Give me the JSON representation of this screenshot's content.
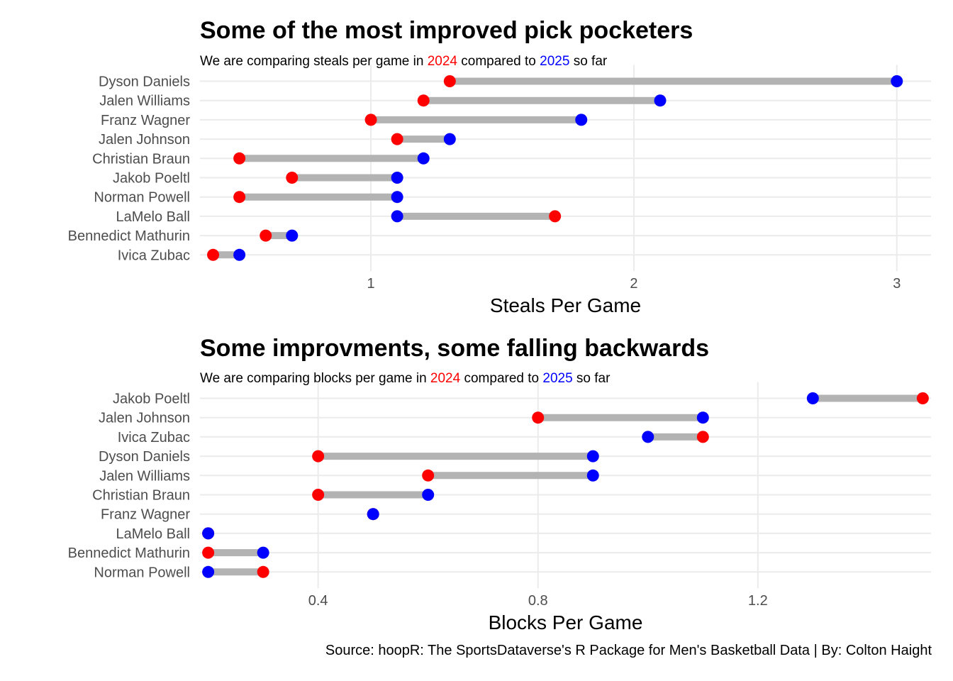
{
  "chart_data": [
    {
      "type": "dumbbell",
      "title": "Some of the most improved pick pocketers",
      "subtitle": {
        "prefix": "We are comparing steals per game in ",
        "label_a": "2024",
        "middle": " compared to ",
        "label_b": "2025",
        "suffix": " so far"
      },
      "xlabel": "Steals Per Game",
      "ylabel": "",
      "xlim": [
        0.35,
        3.13
      ],
      "xticks": [
        1,
        2,
        3
      ],
      "xtick_labels": [
        "1",
        "2",
        "3"
      ],
      "grid": true,
      "colors": {
        "y2024": "#FF0000",
        "y2025": "#0000FF",
        "segment": "#B3B3B3",
        "grid": "#EBEBEB"
      },
      "categories": [
        "Dyson Daniels",
        "Jalen Williams",
        "Franz Wagner",
        "Jalen Johnson",
        "Christian Braun",
        "Jakob Poeltl",
        "Norman Powell",
        "LaMelo Ball",
        "Bennedict Mathurin",
        "Ivica Zubac"
      ],
      "series": [
        {
          "name": "2024",
          "values": [
            1.3,
            1.2,
            1.0,
            1.1,
            0.5,
            0.7,
            0.5,
            1.7,
            0.6,
            0.4
          ]
        },
        {
          "name": "2025",
          "values": [
            3.0,
            2.1,
            1.8,
            1.3,
            1.2,
            1.1,
            1.1,
            1.1,
            0.7,
            0.5
          ]
        }
      ]
    },
    {
      "type": "dumbbell",
      "title": "Some improvments, some falling backwards",
      "subtitle": {
        "prefix": "We are comparing blocks per game in ",
        "label_a": "2024",
        "middle": " compared to ",
        "label_b": "2025",
        "suffix": " so far"
      },
      "xlabel": "Blocks Per Game",
      "ylabel": "",
      "xlim": [
        0.185,
        1.515
      ],
      "xticks": [
        0.4,
        0.8,
        1.2
      ],
      "xtick_labels": [
        "0.4",
        "0.8",
        "1.2"
      ],
      "grid": true,
      "colors": {
        "y2024": "#FF0000",
        "y2025": "#0000FF",
        "segment": "#B3B3B3",
        "grid": "#EBEBEB"
      },
      "categories": [
        "Jakob Poeltl",
        "Jalen Johnson",
        "Ivica Zubac",
        "Dyson Daniels",
        "Jalen Williams",
        "Christian Braun",
        "Franz Wagner",
        "LaMelo Ball",
        "Bennedict Mathurin",
        "Norman Powell"
      ],
      "series": [
        {
          "name": "2024",
          "values": [
            1.5,
            0.8,
            1.1,
            0.4,
            0.6,
            0.4,
            0.5,
            0.2,
            0.2,
            0.3
          ]
        },
        {
          "name": "2025",
          "values": [
            1.3,
            1.1,
            1.0,
            0.9,
            0.9,
            0.6,
            0.5,
            0.2,
            0.3,
            0.2
          ]
        }
      ]
    }
  ],
  "caption": "Source: hoopR: The SportsDataverse's R Package for Men's Basketball Data | By: Colton Haight"
}
